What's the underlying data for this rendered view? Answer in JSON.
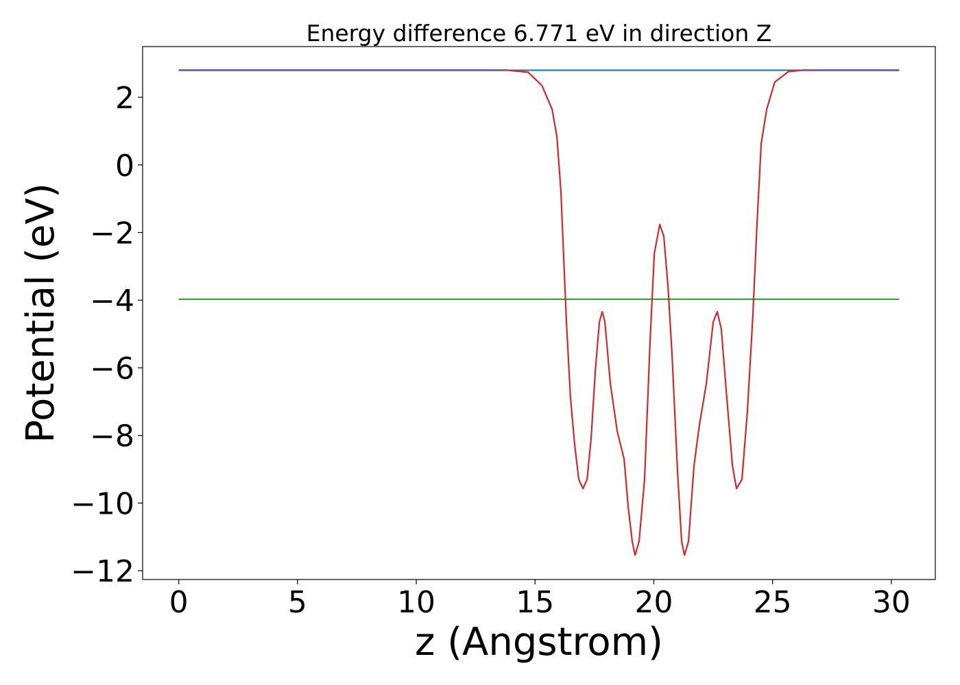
{
  "chart_data": {
    "type": "line",
    "title": "Energy difference 6.771 eV in direction Z",
    "xlabel": "z (Angstrom)",
    "ylabel": "Potential (eV)",
    "xlim": [
      -1.52,
      31.85
    ],
    "ylim": [
      -12.26,
      3.5
    ],
    "xticks": [
      0,
      5,
      10,
      15,
      20,
      25,
      30
    ],
    "yticks": [
      {
        "value": -12,
        "label": "−12"
      },
      {
        "value": -10,
        "label": "−10"
      },
      {
        "value": -8,
        "label": "−8"
      },
      {
        "value": -6,
        "label": "−6"
      },
      {
        "value": -4,
        "label": "−4"
      },
      {
        "value": -2,
        "label": "−2"
      },
      0,
      2
    ],
    "grid": false,
    "series": [
      {
        "color": "#1f77b4",
        "x": [
          0,
          30.33
        ],
        "values": [
          2.8,
          2.8
        ]
      },
      {
        "color": "#2ca02c",
        "x": [
          0,
          30.33
        ],
        "values": [
          -3.971,
          -3.971
        ]
      },
      {
        "color": "#d62728",
        "x": [
          0,
          7,
          13.84,
          14.71,
          15.29,
          15.72,
          15.92,
          16.09,
          16.21,
          16.32,
          16.49,
          16.67,
          16.84,
          17.02,
          17.19,
          17.36,
          17.54,
          17.71,
          17.83,
          17.94,
          18.17,
          18.46,
          18.75,
          18.92,
          19.09,
          19.21,
          19.38,
          19.61,
          19.84,
          20.02,
          20.25,
          20.42,
          20.6,
          20.77,
          21.0,
          21.17,
          21.29,
          21.46,
          21.69,
          21.92,
          22.21,
          22.5,
          22.67,
          22.84,
          23.07,
          23.31,
          23.48,
          23.71,
          23.94,
          24.17,
          24.34,
          24.52,
          24.75,
          25.09,
          25.67,
          26.25,
          30.33
        ],
        "values": [
          2.8,
          2.8,
          2.8,
          2.74,
          2.35,
          1.64,
          0.83,
          -0.79,
          -2.82,
          -4.64,
          -6.87,
          -8.29,
          -9.3,
          -9.57,
          -9.3,
          -8.09,
          -6.06,
          -4.64,
          -4.34,
          -4.64,
          -6.47,
          -7.88,
          -8.7,
          -10.11,
          -11.13,
          -11.54,
          -11.13,
          -9.3,
          -5.25,
          -2.62,
          -1.76,
          -2.11,
          -3.63,
          -5.66,
          -9.1,
          -11.13,
          -11.54,
          -11.13,
          -8.9,
          -7.68,
          -6.47,
          -4.64,
          -4.34,
          -4.85,
          -6.87,
          -8.9,
          -9.57,
          -9.3,
          -7.27,
          -4.44,
          -1.8,
          0.63,
          1.64,
          2.45,
          2.76,
          2.8,
          2.8
        ]
      },
      {
        "color": "#8064a8",
        "x": [
          0,
          13.84,
          20,
          26.25,
          30.33
        ],
        "values": [
          2.8,
          2.8,
          null,
          2.8,
          2.8
        ]
      }
    ]
  }
}
